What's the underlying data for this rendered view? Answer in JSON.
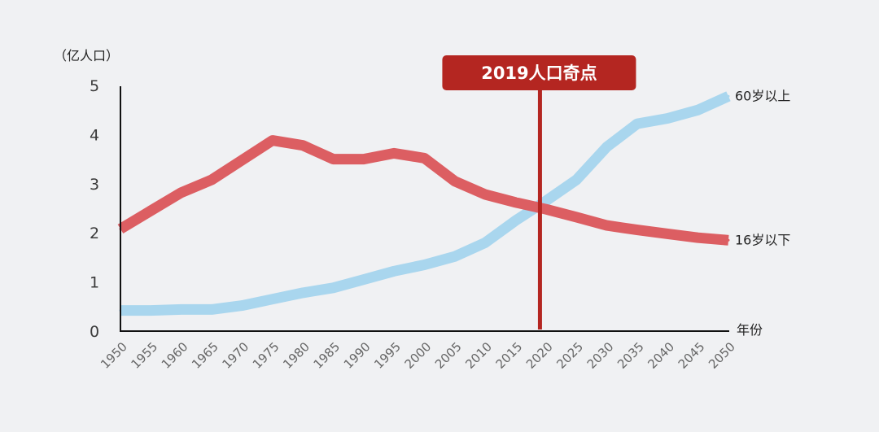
{
  "chart_data": {
    "type": "line",
    "ylabel": "（亿人口）",
    "xlabel": "年份",
    "ylim": [
      0,
      5
    ],
    "yticks": [
      0,
      1,
      2,
      3,
      4,
      5
    ],
    "categories": [
      "1950",
      "1955",
      "1960",
      "1965",
      "1970",
      "1975",
      "1980",
      "1985",
      "1990",
      "1995",
      "2000",
      "2005",
      "2010",
      "2015",
      "2020",
      "2025",
      "2030",
      "2035",
      "2040",
      "2045",
      "2050"
    ],
    "series": [
      {
        "name": "60岁以上",
        "color": "#a9d6ee",
        "values": [
          0.42,
          0.42,
          0.44,
          0.44,
          0.52,
          0.65,
          0.78,
          0.88,
          1.05,
          1.22,
          1.35,
          1.52,
          1.8,
          2.25,
          2.65,
          3.08,
          3.75,
          4.22,
          4.33,
          4.5,
          4.78
        ]
      },
      {
        "name": "16岁以下",
        "color": "#dc5e62",
        "values": [
          2.08,
          2.45,
          2.82,
          3.08,
          3.48,
          3.88,
          3.78,
          3.5,
          3.5,
          3.62,
          3.52,
          3.05,
          2.78,
          2.62,
          2.48,
          2.32,
          2.15,
          2.06,
          1.98,
          1.9,
          1.85
        ]
      }
    ],
    "marker": {
      "label": "2019人口奇点",
      "year": 2019,
      "color": "#b42621"
    }
  }
}
